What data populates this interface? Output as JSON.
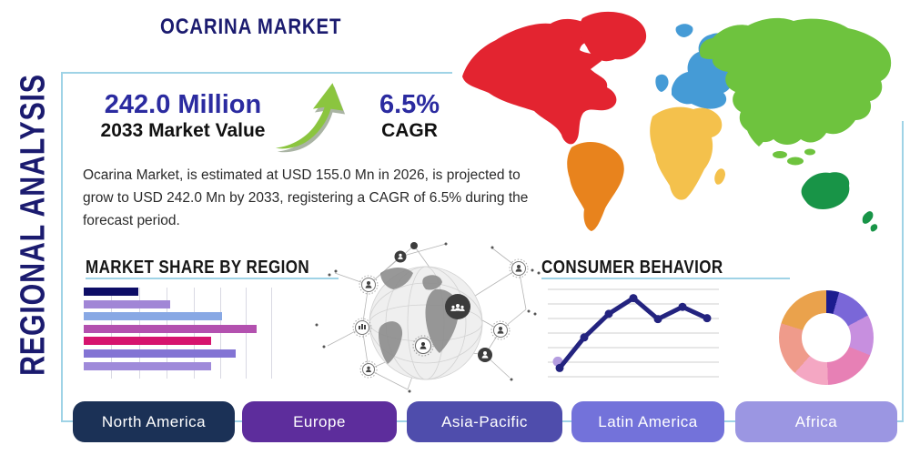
{
  "title": "OCARINA MARKET",
  "side_label": "REGIONAL ANALYSIS",
  "stats": {
    "market_value": "242.0 Million",
    "market_value_label": "2033 Market Value",
    "cagr": "6.5%",
    "cagr_label": "CAGR"
  },
  "description": "Ocarina Market, is estimated at USD 155.0 Mn in 2026, is projected to grow to USD 242.0 Mn by 2033, registering a CAGR of 6.5% during the forecast period.",
  "colors": {
    "accent_navy": "#1b1b6f",
    "stat_blue": "#2b2ba0",
    "frame_teal": "#9fd3e6",
    "arrow_green": "#8bc53f"
  },
  "chart_data": [
    {
      "type": "bar",
      "title": "MARKET SHARE BY REGION",
      "orientation": "horizontal",
      "axis_labels_visible": false,
      "values_pct": [
        29,
        46,
        74,
        92,
        68,
        81,
        68
      ],
      "colors": [
        "#0d0d66",
        "#a186d6",
        "#88a8e4",
        "#b351af",
        "#d6146e",
        "#8374d4",
        "#9f8ada"
      ],
      "grid": "vertical"
    },
    {
      "type": "line",
      "title": "CONSUMER BEHAVIOR",
      "axis_labels_visible": false,
      "values": [
        10,
        45,
        72,
        90,
        66,
        80,
        67
      ],
      "line_color": "#23237f",
      "first_point_marker_color": "#b49de0",
      "grid": "horizontal"
    },
    {
      "type": "pie",
      "title": "",
      "donut": true,
      "slices_pct": [
        4.4,
        12.8,
        13.9,
        18.3,
        12.2,
        18.3,
        20.1
      ],
      "colors": [
        "#1c1c8f",
        "#7a67d8",
        "#c78fdf",
        "#e780b5",
        "#f4a7c3",
        "#ef9b8b",
        "#eaa24c"
      ]
    }
  ],
  "regions": [
    {
      "label": "North America",
      "color": "#1b3156"
    },
    {
      "label": "Europe",
      "color": "#5d2d9c"
    },
    {
      "label": "Asia-Pacific",
      "color": "#4f4dac"
    },
    {
      "label": "Latin America",
      "color": "#7372da"
    },
    {
      "label": "Africa",
      "color": "#9b96e2"
    }
  ],
  "map": {
    "colors": {
      "north_america": "#e32430",
      "south_america": "#e8831d",
      "europe": "#459bd6",
      "africa": "#f4c14c",
      "asia": "#6ec33e",
      "australia": "#189447"
    }
  }
}
